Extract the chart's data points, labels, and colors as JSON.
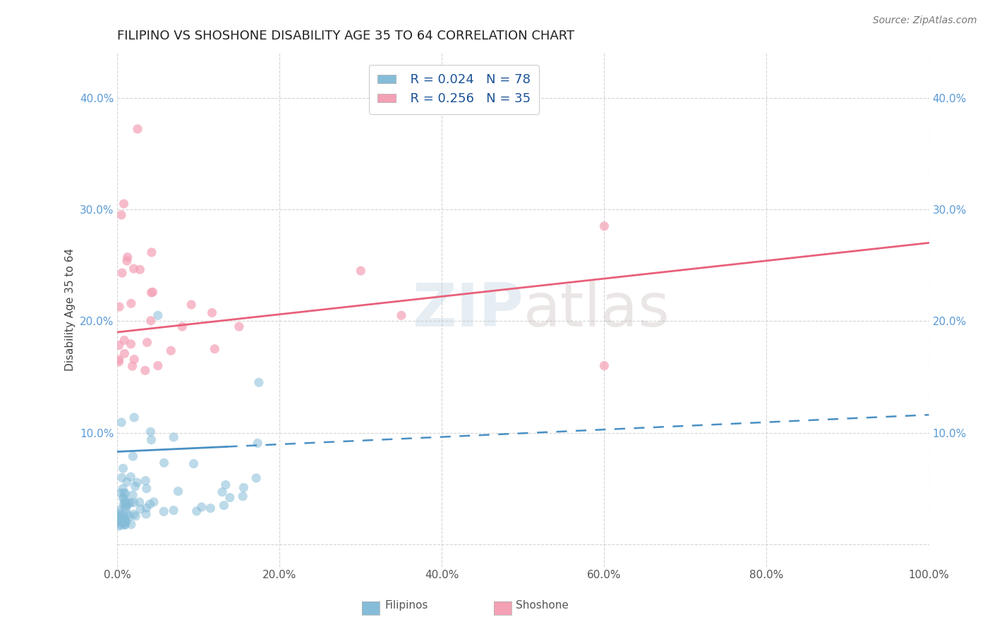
{
  "title": "FILIPINO VS SHOSHONE DISABILITY AGE 35 TO 64 CORRELATION CHART",
  "source": "Source: ZipAtlas.com",
  "ylabel": "Disability Age 35 to 64",
  "watermark": "ZIPatlas",
  "xlim": [
    0.0,
    1.0
  ],
  "ylim": [
    -0.02,
    0.44
  ],
  "xticks": [
    0.0,
    0.2,
    0.4,
    0.6,
    0.8,
    1.0
  ],
  "xtick_labels": [
    "0.0%",
    "20.0%",
    "40.0%",
    "60.0%",
    "80.0%",
    "100.0%"
  ],
  "yticks": [
    0.0,
    0.1,
    0.2,
    0.3,
    0.4
  ],
  "ytick_labels_left": [
    "",
    "10.0%",
    "20.0%",
    "30.0%",
    "40.0%"
  ],
  "ytick_labels_right": [
    "",
    "10.0%",
    "20.0%",
    "30.0%",
    "40.0%"
  ],
  "legend_r1": "R = 0.024",
  "legend_n1": "N = 78",
  "legend_r2": "R = 0.256",
  "legend_n2": "N = 35",
  "color_filipino": "#85bcd8",
  "color_shoshone": "#f4a0b5",
  "line_color_filipino": "#4a90c4",
  "line_color_shoshone": "#e8607a",
  "tick_color": "#5b9bd5",
  "grid_color": "#d0d0d0",
  "background_color": "#ffffff",
  "title_fontsize": 13,
  "axis_label_fontsize": 11,
  "tick_fontsize": 11,
  "legend_fontsize": 13,
  "source_fontsize": 10,
  "fil_trend_x0": 0.0,
  "fil_trend_y0": 0.083,
  "fil_trend_x1": 1.0,
  "fil_trend_y1": 0.116,
  "sho_trend_x0": 0.0,
  "sho_trend_y0": 0.19,
  "sho_trend_x1": 1.0,
  "sho_trend_y1": 0.27
}
